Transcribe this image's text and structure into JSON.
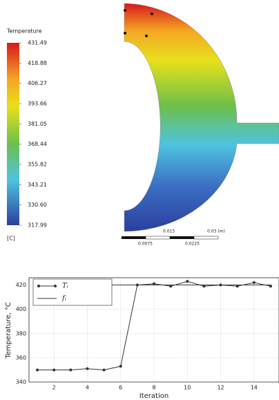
{
  "chart_data": [
    {
      "type": "contour",
      "colorbar": {
        "title": "Temperature",
        "unit": "[C]",
        "clim": [
          317.99,
          431.49
        ],
        "ticks": [
          431.49,
          418.88,
          406.27,
          393.66,
          381.05,
          368.44,
          355.82,
          343.21,
          {
            "value": 330.6,
            "label": "330.60"
          },
          317.99
        ]
      },
      "scale_bar": {
        "labels": [
          "0.0075",
          "0.015",
          "0.0225",
          "0.03 (m)"
        ]
      }
    },
    {
      "type": "line",
      "ylabel": "Temperature, °C",
      "xlabel": "Iteration",
      "x": [
        1,
        2,
        3,
        4,
        5,
        6,
        7,
        8,
        9,
        10,
        11,
        12,
        13,
        14,
        15
      ],
      "series": [
        {
          "name": "Tᵢ",
          "color": "#333333",
          "marker": true,
          "values": [
            350,
            350,
            350,
            351,
            350,
            353,
            420,
            421,
            419,
            423,
            419,
            420,
            419,
            422,
            419
          ]
        },
        {
          "name": "fᵢ",
          "color": "#333333",
          "marker": false,
          "values": [
            420,
            420,
            420,
            420,
            420,
            420,
            420,
            420,
            420,
            420,
            420,
            420,
            420,
            420,
            420
          ]
        }
      ],
      "xlim": [
        0.5,
        15.5
      ],
      "ylim": [
        340,
        426
      ],
      "xticks": [
        2,
        4,
        6,
        8,
        10,
        12,
        14
      ],
      "yticks": [
        340,
        360,
        380,
        400,
        420
      ],
      "grid": true,
      "legend": "upper left"
    }
  ]
}
